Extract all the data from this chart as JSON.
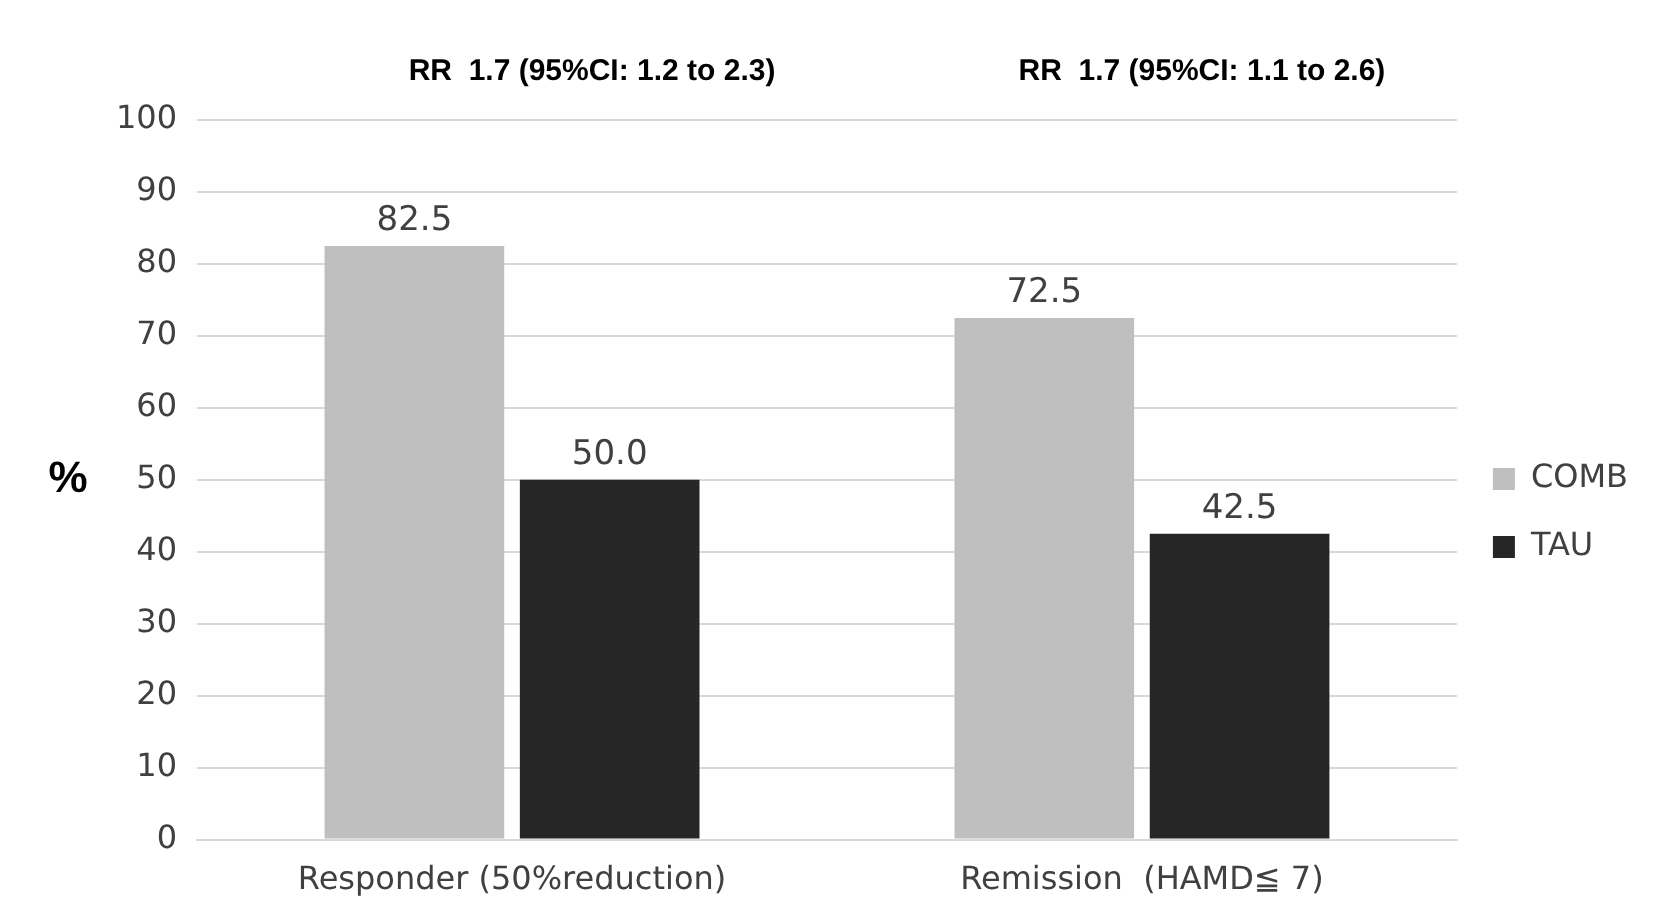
{
  "chart_data": {
    "type": "bar",
    "categories": [
      "Responder (50%reduction)",
      "Remission  (HAMD≦ 7)"
    ],
    "series": [
      {
        "name": "COMB",
        "color": "#bfbfbf",
        "values": [
          82.5,
          72.5
        ],
        "value_labels": [
          "82.5",
          "72.5"
        ]
      },
      {
        "name": "TAU",
        "color": "#262626",
        "values": [
          50.0,
          42.5
        ],
        "value_labels": [
          "50.0",
          "42.5"
        ]
      }
    ],
    "ylabel": "%",
    "ylim": [
      0,
      100
    ],
    "yticks": [
      0,
      10,
      20,
      30,
      40,
      50,
      60,
      70,
      80,
      90,
      100
    ],
    "grid": "y",
    "legend": "right",
    "annotations": [
      "RR  1.7 (95%CI: 1.2 to 2.3)",
      "RR  1.7 (95%CI: 1.1 to 2.6)"
    ]
  }
}
